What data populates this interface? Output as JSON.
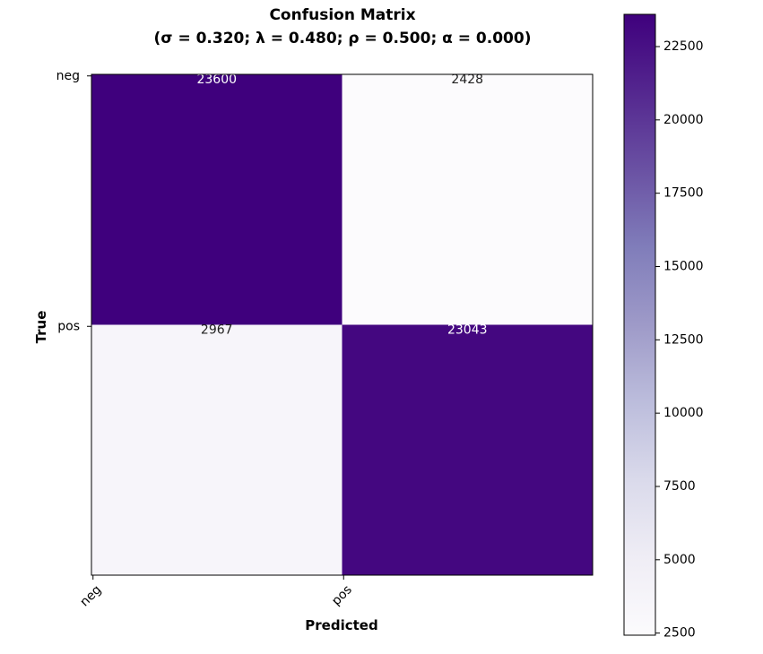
{
  "chart_data": {
    "type": "heatmap",
    "title": "Confusion Matrix",
    "subtitle": "(σ = 0.320; λ = 0.480; ρ = 0.500; α = 0.000)",
    "xlabel": "Predicted",
    "ylabel": "True",
    "x_categories": [
      "neg",
      "pos"
    ],
    "y_categories": [
      "neg",
      "pos"
    ],
    "values": [
      [
        23600,
        2428
      ],
      [
        2967,
        23043
      ]
    ],
    "value_labels": [
      [
        "23600",
        "2428"
      ],
      [
        "2967",
        "23043"
      ]
    ],
    "colormap": "Purples",
    "color_low": "#fcfbfd",
    "color_high": "#3f007d",
    "colorbar": {
      "min": 2428,
      "max": 23600,
      "ticks": [
        2500,
        5000,
        7500,
        10000,
        12500,
        15000,
        17500,
        20000,
        22500
      ],
      "tick_labels": [
        "2500",
        "5000",
        "7500",
        "10000",
        "12500",
        "15000",
        "17500",
        "20000",
        "22500"
      ]
    }
  }
}
